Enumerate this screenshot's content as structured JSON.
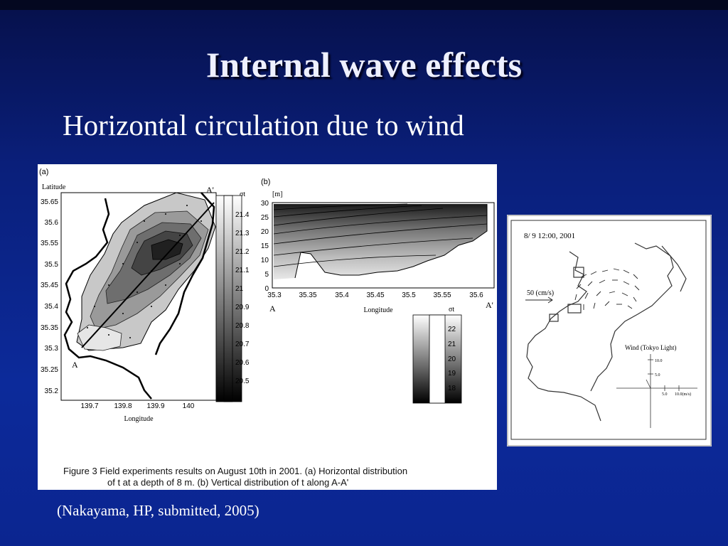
{
  "slide": {
    "title": "Internal wave effects",
    "subtitle": "Horizontal circulation due to wind",
    "citation": "(Nakayama, HP, submitted, 2005)"
  },
  "figure3": {
    "panel_a": {
      "label": "(a)",
      "ylabel": "Latitude",
      "xlabel": "Longitude",
      "yticks": [
        "35.65",
        "35.6",
        "35.55",
        "35.5",
        "35.45",
        "35.4",
        "35.35",
        "35.3",
        "35.25",
        "35.2"
      ],
      "xticks": [
        "139.7",
        "139.8",
        "139.9",
        "140"
      ],
      "point_a": "A",
      "point_a_prime": "A'",
      "colorbar_label": "σt",
      "colorbar_ticks": [
        "21.4",
        "21.3",
        "21.2",
        "21.1",
        "21",
        "20.9",
        "20.8",
        "20.7",
        "20.6",
        "20.5"
      ]
    },
    "panel_b": {
      "label": "(b)",
      "yunit": "[m]",
      "xlabel": "Longitude",
      "yticks": [
        "30",
        "25",
        "20",
        "15",
        "10",
        "5",
        "0"
      ],
      "xticks": [
        "35.3",
        "35.35",
        "35.4",
        "35.45",
        "35.5",
        "35.55",
        "35.6"
      ],
      "point_a": "A",
      "point_a_prime": "A'",
      "colorbar_label": "σt",
      "colorbar_ticks": [
        "22",
        "21",
        "20",
        "19",
        "18"
      ]
    },
    "caption_line1": "Figure 3 Field experiments results on August 10th in 2001. (a) Horizontal distribution",
    "caption_line2": "of  t at a depth of 8 m. (b) Vertical distribution of  t along A-A'"
  },
  "wind_figure": {
    "timestamp": "8/ 9 12:00, 2001",
    "scale_label": "50 (cm/s)",
    "legend_title": "Wind (Tokyo Light)",
    "tick_10": "10.0",
    "tick_5": "5.0",
    "x_tick_5": "5.0",
    "x_tick_10": "10.0(m/s)"
  }
}
